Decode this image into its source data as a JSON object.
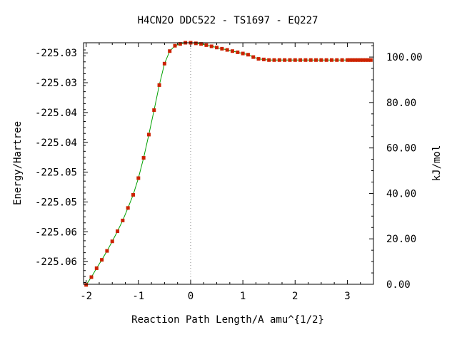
{
  "chart_data": {
    "type": "scatter",
    "title": "H4CN2O   DDC522 - TS1697 - EQ227",
    "xlabel": "Reaction Path Length/A amu^{1/2}",
    "ylabel": "Energy/Hartree",
    "y2label": "kJ/mol",
    "xlim": [
      -2.05,
      3.5
    ],
    "ylim": [
      -225.0663,
      -225.0258
    ],
    "y2lim": [
      0.0,
      106.3
    ],
    "x_ticks": [
      -2,
      -1,
      0,
      1,
      2,
      3
    ],
    "x_tick_labels": [
      "-2",
      "-1",
      "0",
      "1",
      "2",
      "3"
    ],
    "y_ticks": [
      -225.0275,
      -225.0325,
      -225.0375,
      -225.0425,
      -225.0475,
      -225.0525,
      -225.0575,
      -225.0625
    ],
    "y_tick_labels": [
      "-225.03",
      "-225.03",
      "-225.04",
      "-225.04",
      "-225.05",
      "-225.05",
      "-225.06",
      "-225.06"
    ],
    "y2_ticks": [
      0,
      20,
      40,
      60,
      80,
      100
    ],
    "y2_tick_labels": [
      "0.00",
      "20.00",
      "40.00",
      "60.00",
      "80.00",
      "100.00"
    ],
    "grid": false,
    "colors": {
      "points": "#cc2200",
      "line": "#00a000",
      "zero_line": "#888888"
    },
    "series": [
      {
        "x": [
          -2.0,
          -1.9,
          -1.8,
          -1.7,
          -1.6,
          -1.5,
          -1.4,
          -1.3,
          -1.2,
          -1.1,
          -1.0,
          -0.9,
          -0.8,
          -0.7,
          -0.6,
          -0.5,
          -0.4,
          -0.3,
          -0.2,
          -0.1,
          0.0,
          0.1,
          0.2,
          0.3,
          0.4,
          0.5,
          0.6,
          0.7,
          0.8,
          0.9,
          1.0,
          1.1,
          1.2,
          1.3,
          1.4,
          1.5,
          1.6,
          1.7,
          1.8,
          1.9,
          2.0,
          2.1,
          2.2,
          2.3,
          2.4,
          2.5,
          2.6,
          2.7,
          2.8,
          2.9,
          3.0,
          3.05,
          3.1,
          3.15,
          3.2,
          3.25,
          3.3,
          3.35,
          3.4,
          3.45
        ],
        "y": [
          -225.0664,
          -225.0651,
          -225.0636,
          -225.0622,
          -225.0607,
          -225.0591,
          -225.0574,
          -225.0556,
          -225.0535,
          -225.0513,
          -225.0485,
          -225.0451,
          -225.0412,
          -225.0371,
          -225.0329,
          -225.0293,
          -225.0272,
          -225.0263,
          -225.026,
          -225.0258,
          -225.0258,
          -225.0259,
          -225.026,
          -225.0262,
          -225.0264,
          -225.0266,
          -225.0268,
          -225.027,
          -225.0272,
          -225.0274,
          -225.0276,
          -225.0278,
          -225.0282,
          -225.0285,
          -225.0286,
          -225.0287,
          -225.0287,
          -225.0287,
          -225.0287,
          -225.0287,
          -225.0287,
          -225.0287,
          -225.0287,
          -225.0287,
          -225.0287,
          -225.0287,
          -225.0287,
          -225.0287,
          -225.0287,
          -225.0287,
          -225.0287,
          -225.0287,
          -225.0287,
          -225.0287,
          -225.0287,
          -225.0287,
          -225.0287,
          -225.0287,
          -225.0287,
          -225.0287
        ]
      }
    ]
  }
}
